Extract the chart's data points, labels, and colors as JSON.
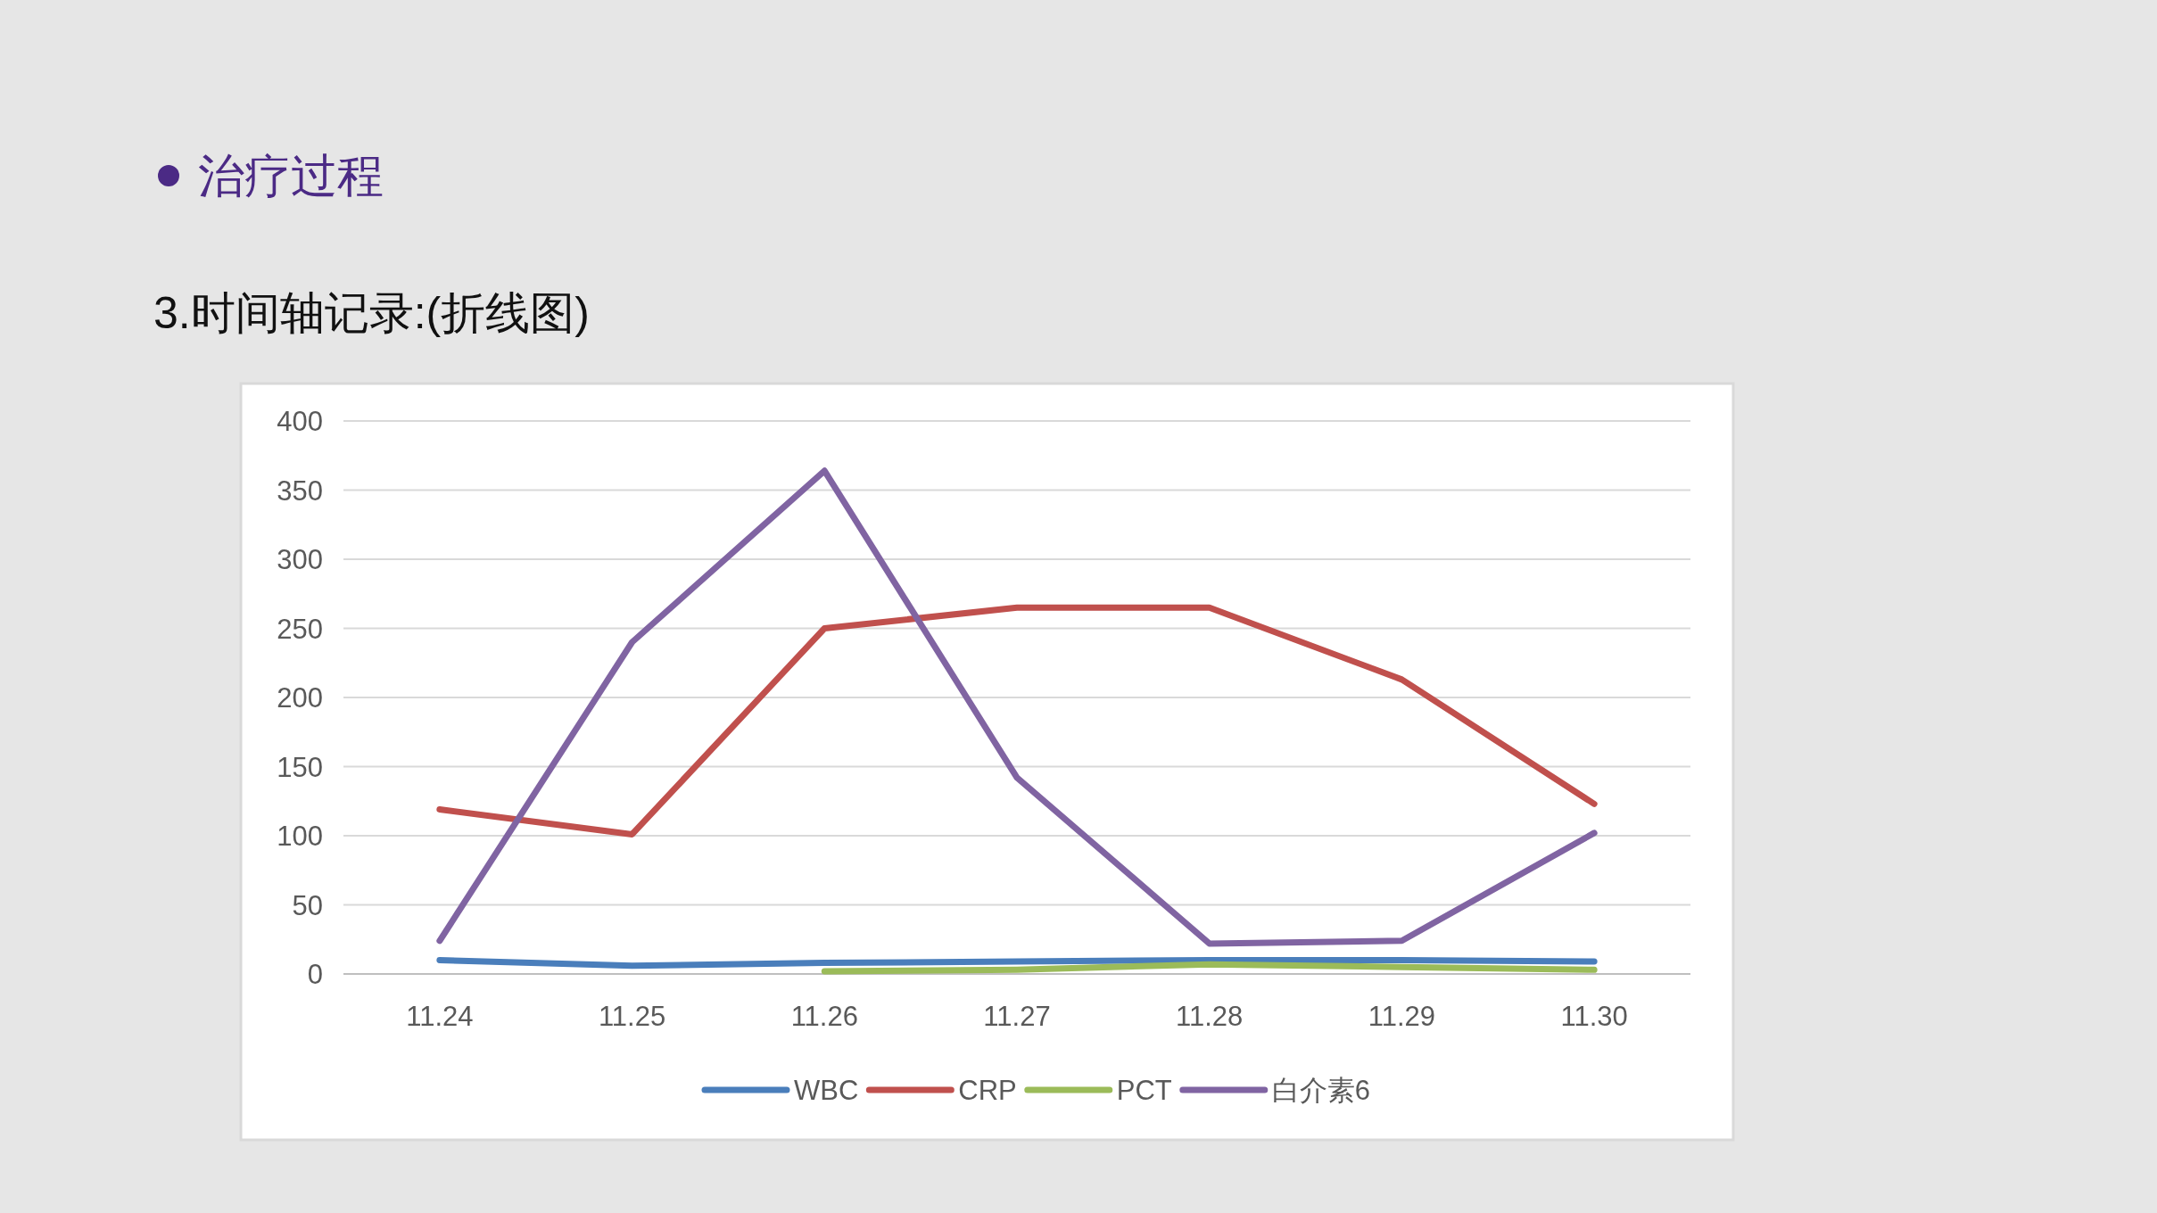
{
  "chart_data": {
    "type": "line",
    "title": "治疗过程",
    "subtitle": "3.时间轴记录:(折线图)",
    "categories": [
      "11.24",
      "11.25",
      "11.26",
      "11.27",
      "11.28",
      "11.29",
      "11.30"
    ],
    "series": [
      {
        "name": "WBC",
        "color": "#4a7ebb",
        "values": [
          10,
          6,
          8,
          9,
          10,
          10,
          9
        ]
      },
      {
        "name": "CRP",
        "color": "#c0504d",
        "values": [
          119,
          101,
          250,
          265,
          265,
          213,
          123
        ]
      },
      {
        "name": "PCT",
        "color": "#9bbb59",
        "values": [
          null,
          null,
          2,
          3,
          7,
          5,
          3
        ]
      },
      {
        "name": "白介素6",
        "color": "#8064a2",
        "values": [
          24,
          240,
          364,
          142,
          22,
          24,
          102
        ]
      }
    ],
    "ylim": [
      0,
      400
    ],
    "yticks": [
      0,
      50,
      100,
      150,
      200,
      250,
      300,
      350,
      400
    ],
    "grid": "y",
    "legend": "bottom",
    "marker": "none",
    "line_style": "solid"
  }
}
